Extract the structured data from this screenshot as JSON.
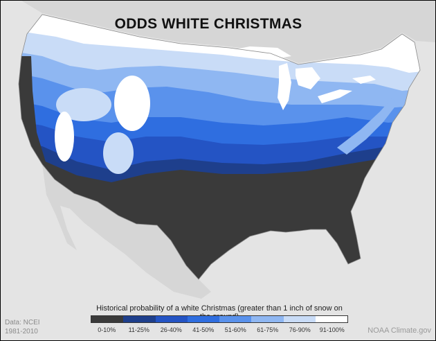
{
  "map": {
    "title": "ODDS WHITE CHRISTMAS",
    "legend": {
      "caption": "Historical probability of a white Christmas (greater than 1 inch of snow on the ground)",
      "bins": [
        {
          "label": "0-10%",
          "color": "#3a3a3a"
        },
        {
          "label": "11-25%",
          "color": "#1e3f8c"
        },
        {
          "label": "26-40%",
          "color": "#2454c4"
        },
        {
          "label": "41-50%",
          "color": "#2f6ee0"
        },
        {
          "label": "51-60%",
          "color": "#5a92ec"
        },
        {
          "label": "61-75%",
          "color": "#8fb7f2"
        },
        {
          "label": "76-90%",
          "color": "#c9dcf7"
        },
        {
          "label": "91-100%",
          "color": "#ffffff"
        }
      ]
    },
    "credits": {
      "data_source": "Data: NCEI",
      "period": "1981-2010",
      "publisher": "NOAA Climate.gov"
    },
    "background_colors": {
      "land_outside": "#d9d9d9",
      "water": "#e8e8e8",
      "lakes": "#ffffff"
    }
  }
}
